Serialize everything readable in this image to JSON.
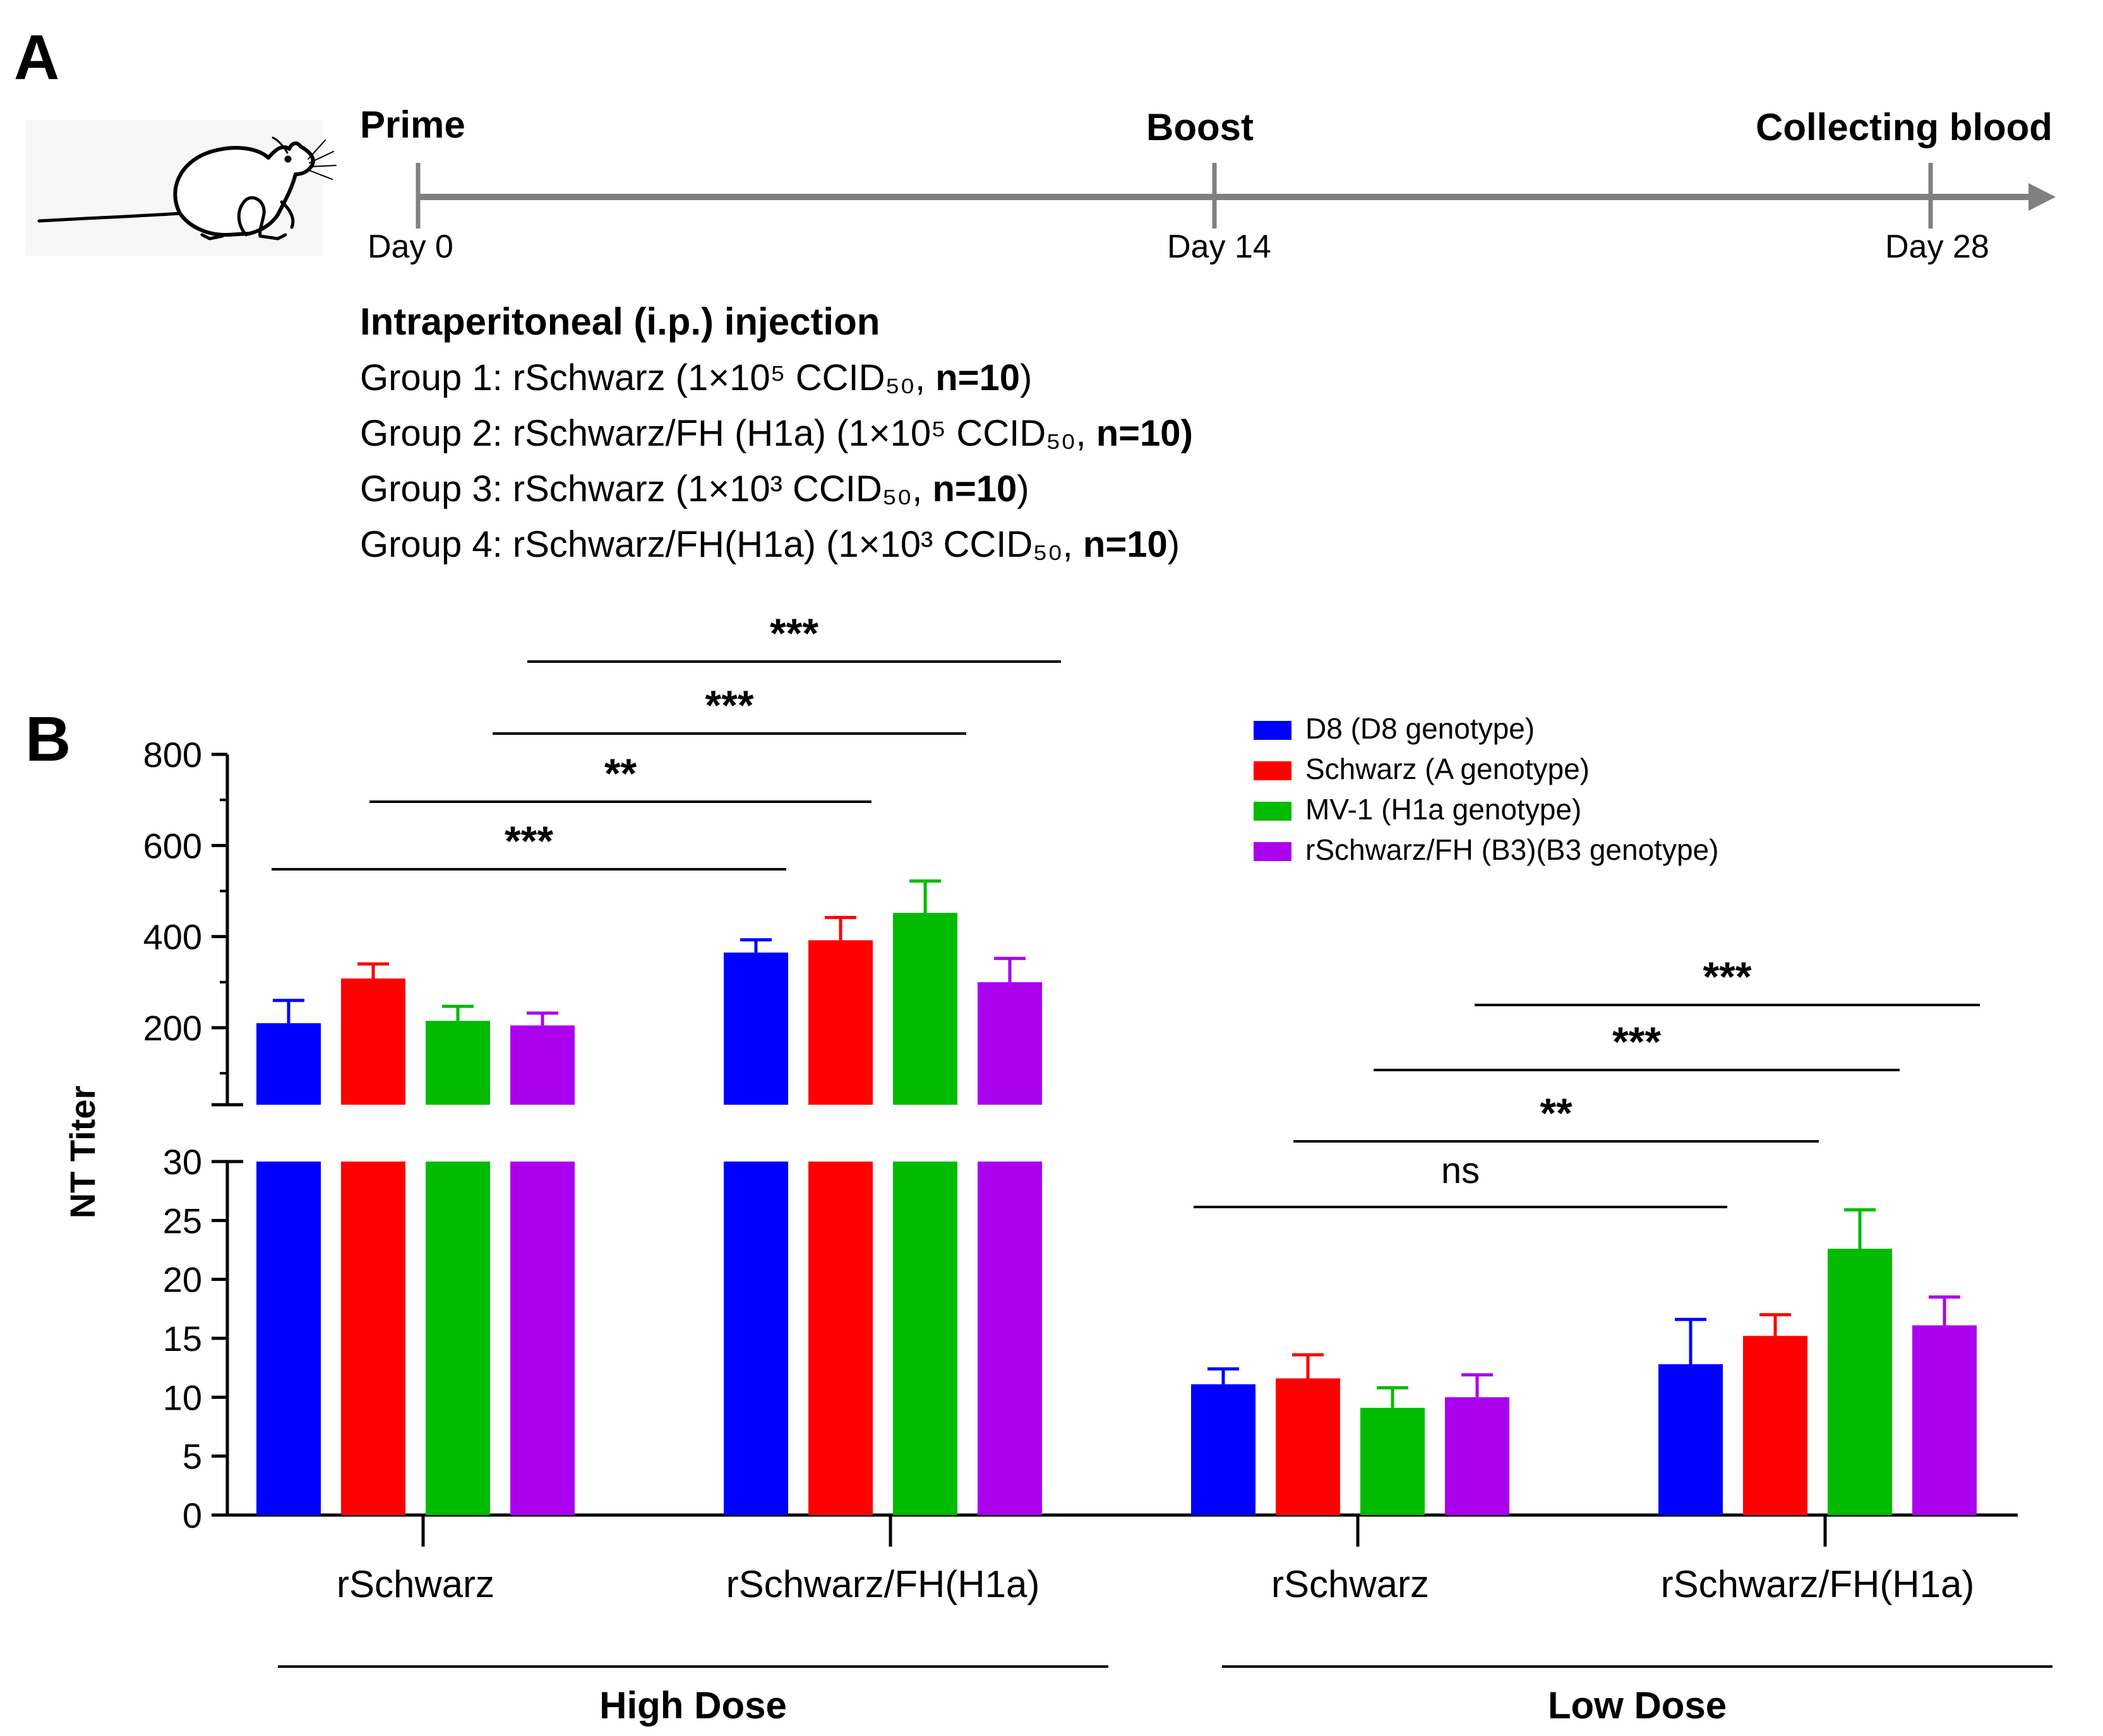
{
  "panel_a": {
    "label": "A",
    "timeline": {
      "events": [
        {
          "name": "Prime",
          "day": "Day 0"
        },
        {
          "name": "Boost",
          "day": "Day 14"
        },
        {
          "name": "Collecting blood",
          "day": "Day 28"
        }
      ]
    },
    "injection_title": "Intraperitoneal (i.p.) injection",
    "groups": [
      {
        "prefix": "Group 1: rSchwarz (1×10⁵ CCID₅₀, ",
        "n": "n=10",
        "suffix": ")"
      },
      {
        "prefix": "Group 2: rSchwarz/FH (H1a) (1×10⁵ CCID₅₀, ",
        "n": "n=10)",
        "suffix": ""
      },
      {
        "prefix": "Group 3: rSchwarz (1×10³ CCID₅₀, ",
        "n": "n=10",
        "suffix": ")"
      },
      {
        "prefix": "Group 4: rSchwarz/FH(H1a)  (1×10³ CCID₅₀, ",
        "n": "n=10",
        "suffix": ")"
      }
    ]
  },
  "panel_b": {
    "label": "B"
  },
  "colors": {
    "D8": "#0000ff",
    "Schwarz": "#ff0000",
    "MV1": "#00bb00",
    "B3": "#aa00ee",
    "timeline": "#808080"
  },
  "chart_data": {
    "type": "bar",
    "ylabel": "NT Titer",
    "y_axis": {
      "broken": true,
      "lower_range": [
        0,
        30
      ],
      "lower_ticks": [
        0,
        5,
        10,
        15,
        20,
        25,
        30
      ],
      "upper_range": [
        30,
        800
      ],
      "upper_ticks": [
        200,
        400,
        600,
        800
      ]
    },
    "categories": [
      "rSchwarz",
      "rSchwarz/FH(H1a)",
      "rSchwarz",
      "rSchwarz/FH(H1a)"
    ],
    "dose_groups": [
      {
        "label": "High Dose",
        "categories": [
          0,
          1
        ]
      },
      {
        "label": "Low Dose",
        "categories": [
          2,
          3
        ]
      }
    ],
    "series": [
      {
        "name": "D8 (D8 genotype)",
        "color": "#0000ff",
        "values": [
          210,
          365,
          11.1,
          12.8
        ],
        "errors": [
          50,
          28,
          1.3,
          3.8
        ]
      },
      {
        "name": "Schwarz (A genotype)",
        "color": "#ff0000",
        "values": [
          308,
          392,
          11.6,
          15.2
        ],
        "errors": [
          32,
          50,
          2.0,
          1.8
        ]
      },
      {
        "name": "MV-1 (H1a genotype)",
        "color": "#00bb00",
        "values": [
          215,
          452,
          9.1,
          22.6
        ],
        "errors": [
          32,
          70,
          1.7,
          3.3
        ]
      },
      {
        "name": "rSchwarz/FH (B3)(B3 genotype)",
        "color": "#aa00ee",
        "values": [
          205,
          300,
          10.0,
          16.1
        ],
        "errors": [
          27,
          52,
          1.9,
          2.4
        ]
      }
    ],
    "significance": [
      {
        "label": "***",
        "from": [
          0,
          0
        ],
        "to": [
          1,
          0
        ]
      },
      {
        "label": "**",
        "from": [
          0,
          1
        ],
        "to": [
          1,
          1
        ]
      },
      {
        "label": "***",
        "from": [
          0,
          2
        ],
        "to": [
          1,
          2
        ]
      },
      {
        "label": "***",
        "from": [
          0,
          3
        ],
        "to": [
          1,
          3
        ]
      },
      {
        "label": "ns",
        "from": [
          2,
          0
        ],
        "to": [
          3,
          0
        ]
      },
      {
        "label": "**",
        "from": [
          2,
          1
        ],
        "to": [
          3,
          1
        ]
      },
      {
        "label": "***",
        "from": [
          2,
          2
        ],
        "to": [
          3,
          2
        ]
      },
      {
        "label": "***",
        "from": [
          2,
          3
        ],
        "to": [
          3,
          3
        ]
      }
    ]
  }
}
